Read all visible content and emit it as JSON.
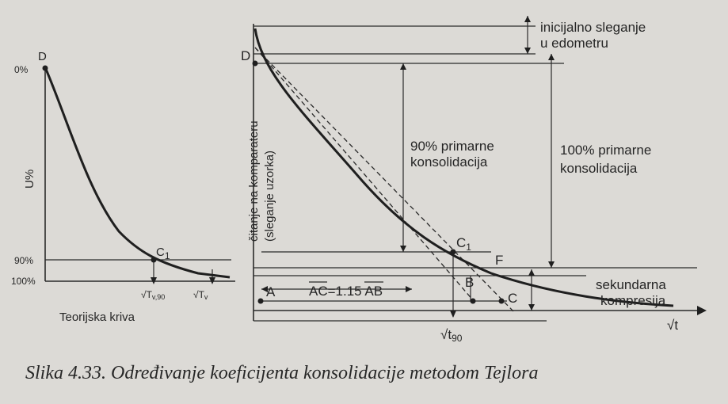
{
  "left_chart": {
    "point_D": "D",
    "tick_0": "0%",
    "tick_90": "90%",
    "tick_100": "100%",
    "y_label": "U%",
    "point_C1": "C",
    "point_C1_sub": "1",
    "x_tick_1": "√T",
    "x_tick_1_sub": "v,90",
    "x_tick_2": "√T",
    "x_tick_2_sub": "v",
    "title": "Teorijska kriva"
  },
  "right_chart": {
    "point_D": "D",
    "y_label_1": "čitanje na komparateru",
    "y_label_2": "(sleganje uzorka)",
    "initial_1": "inicijalno sleganje",
    "initial_2": "u edometru",
    "primary90_1": "90% primarne",
    "primary90_2": "konsolidacija",
    "primary100_1": "100% primarne",
    "primary100_2": "konsolidacija",
    "point_C1": "C",
    "point_C1_sub": "1",
    "point_F": "F",
    "point_A": "A",
    "point_B": "B",
    "point_C": "C",
    "relation": "AC=1.15 AB",
    "secondary_1": "sekundarna",
    "secondary_2": "kompresija",
    "x_tick": "√t",
    "x_tick_sub": "90",
    "x_axis": "√t"
  },
  "caption": "Slika 4.33. Određivanje koeficijenta konsolidacije metodom Tejlora"
}
